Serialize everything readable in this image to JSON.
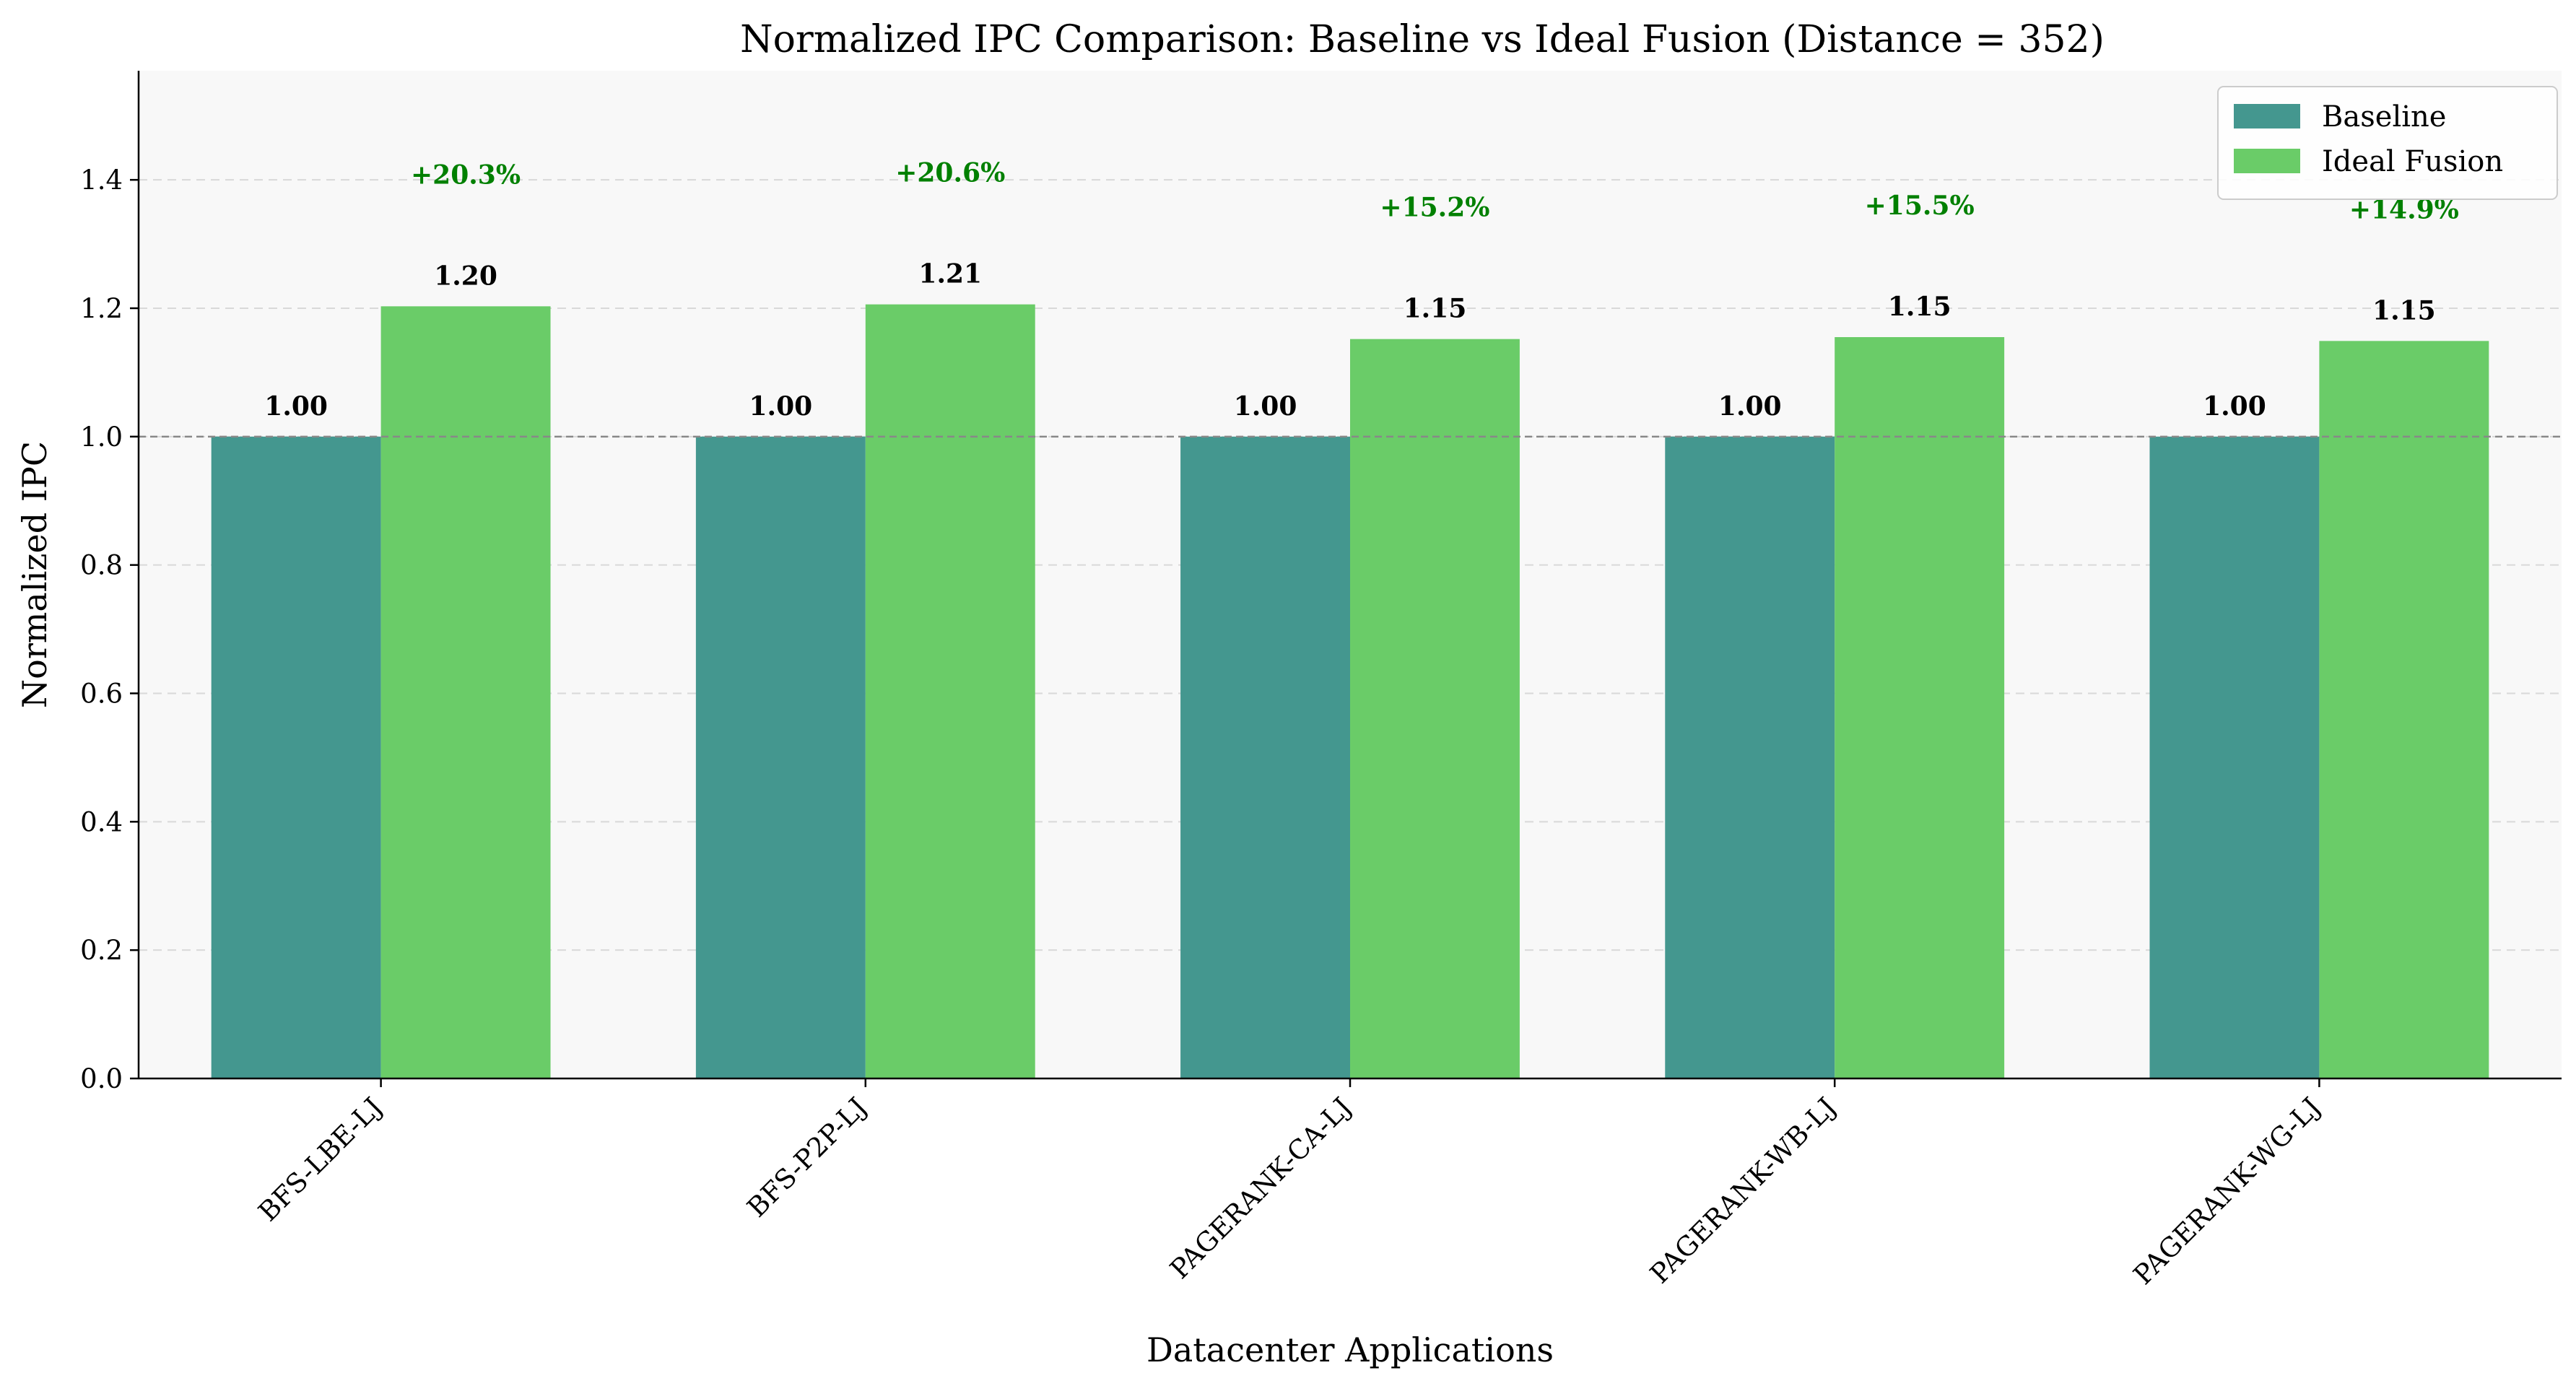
{
  "chart_data": {
    "type": "bar",
    "title": "Normalized IPC Comparison: Baseline vs Ideal Fusion (Distance = 352)",
    "xlabel": "Datacenter Applications",
    "ylabel": "Normalized IPC",
    "categories": [
      "BFS-LBE-LJ",
      "BFS-P2P-LJ",
      "PAGERANK-CA-LJ",
      "PAGERANK-WB-LJ",
      "PAGERANK-WG-LJ"
    ],
    "series": [
      {
        "name": "Baseline",
        "color": "#44978f",
        "values": [
          1.0,
          1.0,
          1.0,
          1.0,
          1.0
        ],
        "labels": [
          "1.00",
          "1.00",
          "1.00",
          "1.00",
          "1.00"
        ]
      },
      {
        "name": "Ideal Fusion",
        "color": "#6acc68",
        "values": [
          1.203,
          1.206,
          1.152,
          1.155,
          1.149
        ],
        "labels": [
          "1.20",
          "1.21",
          "1.15",
          "1.15",
          "1.15"
        ]
      }
    ],
    "improvements": [
      "+20.3%",
      "+20.6%",
      "+15.2%",
      "+15.5%",
      "+14.9%"
    ],
    "improvement_color": "#008000",
    "ylim": [
      0,
      1.57
    ],
    "yticks": [
      0.0,
      0.2,
      0.4,
      0.6,
      0.8,
      1.0,
      1.2,
      1.4
    ],
    "ytick_labels": [
      "0.0",
      "0.2",
      "0.4",
      "0.6",
      "0.8",
      "1.0",
      "1.2",
      "1.4"
    ],
    "reference_line": 1.0,
    "grid": "y-dashed",
    "legend_position": "top-right",
    "plot_background": "#f8f8f8"
  }
}
